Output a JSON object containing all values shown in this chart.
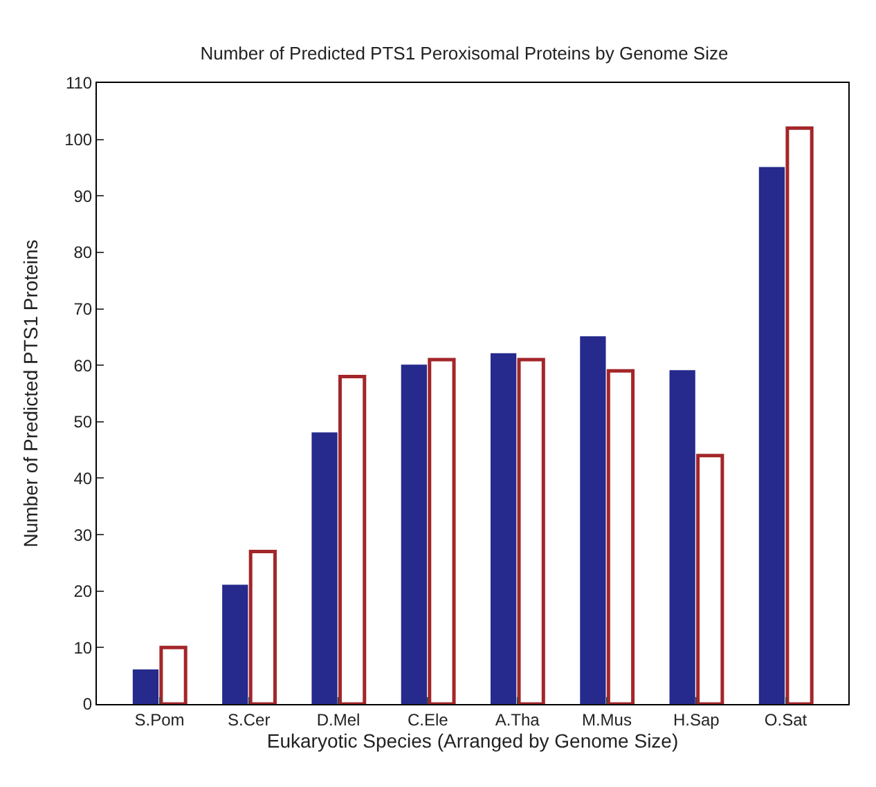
{
  "chart_data": {
    "type": "bar",
    "title": "Number of Predicted PTS1 Peroxisomal Proteins by Genome Size",
    "xlabel": "Eukaryotic Species (Arranged by Genome Size)",
    "ylabel": "Number of Predicted PTS1 Proteins",
    "categories": [
      "S.Pom",
      "S.Cer",
      "D.Mel",
      "C.Ele",
      "A.Tha",
      "M.Mus",
      "H.Sap",
      "O.Sat"
    ],
    "series": [
      {
        "color": "#262a8c",
        "values": [
          6,
          21,
          48,
          60,
          62,
          65,
          59,
          95
        ]
      },
      {
        "color": "#a3262a",
        "values": [
          10,
          27,
          58,
          61,
          61,
          59,
          44,
          102
        ]
      }
    ],
    "ylim": [
      0,
      110
    ],
    "yticks": [
      0,
      10,
      20,
      30,
      40,
      50,
      60,
      70,
      80,
      90,
      100,
      110
    ]
  }
}
